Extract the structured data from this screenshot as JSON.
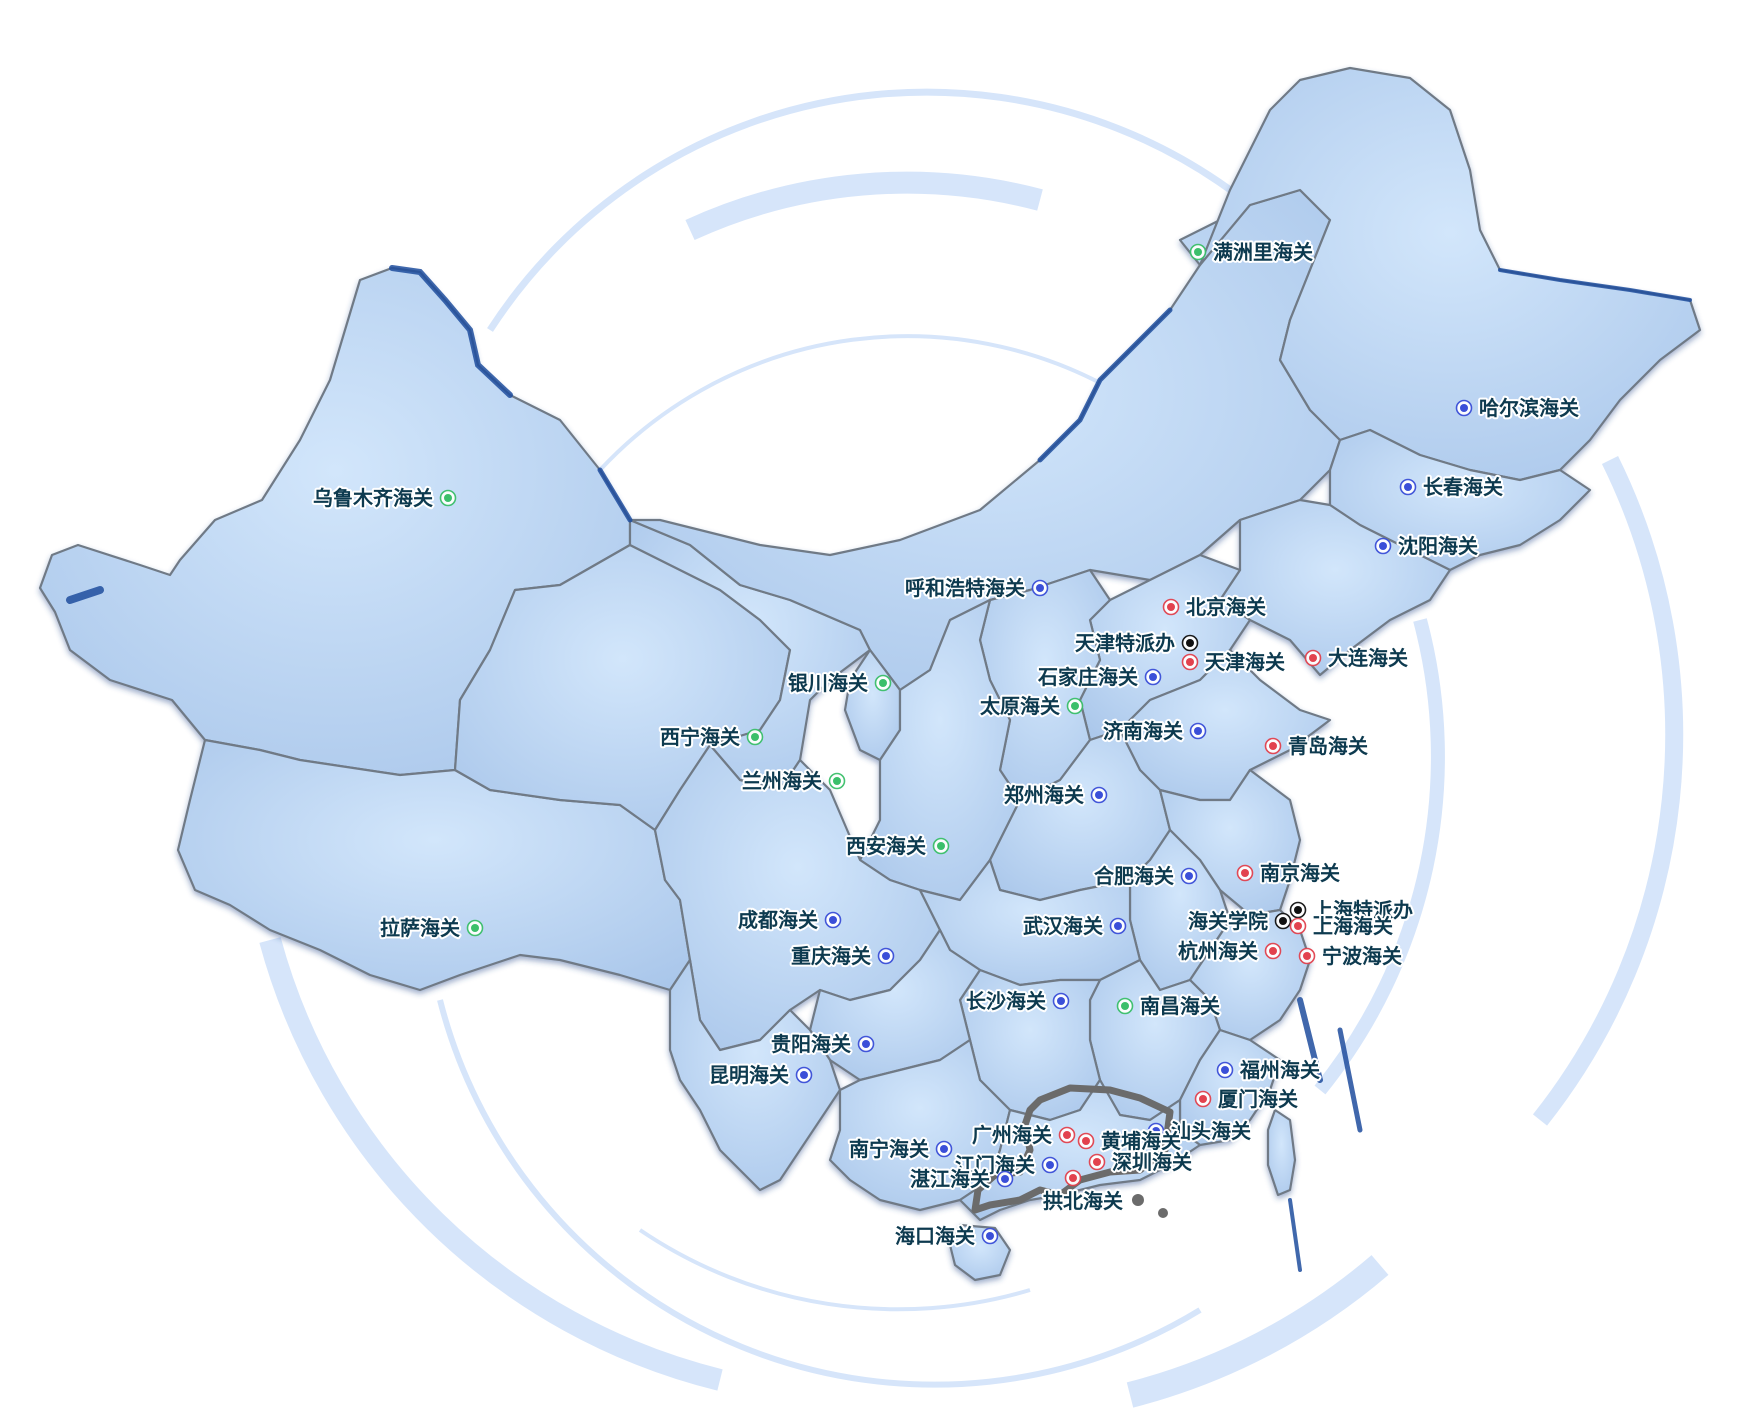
{
  "map": {
    "colors": {
      "red": "#e2424e",
      "blue": "#3b4fd8",
      "green": "#3bbf6a",
      "black": "#111111",
      "land": "#b9d3f0",
      "ring": "#d7e6fb",
      "label": "#0d3a4f"
    },
    "markers": [
      {
        "label": "满洲里海关",
        "color": "green",
        "side": "right"
      },
      {
        "label": "哈尔滨海关",
        "color": "blue",
        "side": "right"
      },
      {
        "label": "长春海关",
        "color": "blue",
        "side": "right"
      },
      {
        "label": "沈阳海关",
        "color": "blue",
        "side": "right"
      },
      {
        "label": "乌鲁木齐海关",
        "color": "green",
        "side": "left"
      },
      {
        "label": "呼和浩特海关",
        "color": "blue",
        "side": "left"
      },
      {
        "label": "北京海关",
        "color": "red",
        "side": "right"
      },
      {
        "label": "天津特派办",
        "color": "black",
        "side": "left"
      },
      {
        "label": "天津海关",
        "color": "red",
        "side": "right"
      },
      {
        "label": "大连海关",
        "color": "red",
        "side": "right"
      },
      {
        "label": "银川海关",
        "color": "green",
        "side": "left"
      },
      {
        "label": "石家庄海关",
        "color": "blue",
        "side": "left"
      },
      {
        "label": "太原海关",
        "color": "green",
        "side": "left"
      },
      {
        "label": "西宁海关",
        "color": "green",
        "side": "left"
      },
      {
        "label": "济南海关",
        "color": "blue",
        "side": "left"
      },
      {
        "label": "青岛海关",
        "color": "red",
        "side": "right"
      },
      {
        "label": "兰州海关",
        "color": "green",
        "side": "left"
      },
      {
        "label": "郑州海关",
        "color": "blue",
        "side": "left"
      },
      {
        "label": "西安海关",
        "color": "green",
        "side": "left"
      },
      {
        "label": "合肥海关",
        "color": "blue",
        "side": "left"
      },
      {
        "label": "南京海关",
        "color": "red",
        "side": "right"
      },
      {
        "label": "上海特派办",
        "color": "black",
        "side": "right"
      },
      {
        "label": "海关学院",
        "color": "black",
        "side": "left"
      },
      {
        "label": "上海海关",
        "color": "red",
        "side": "right"
      },
      {
        "label": "拉萨海关",
        "color": "green",
        "side": "left"
      },
      {
        "label": "成都海关",
        "color": "blue",
        "side": "left"
      },
      {
        "label": "武汉海关",
        "color": "blue",
        "side": "left"
      },
      {
        "label": "杭州海关",
        "color": "red",
        "side": "left"
      },
      {
        "label": "宁波海关",
        "color": "red",
        "side": "right"
      },
      {
        "label": "重庆海关",
        "color": "blue",
        "side": "left"
      },
      {
        "label": "长沙海关",
        "color": "blue",
        "side": "left"
      },
      {
        "label": "南昌海关",
        "color": "green",
        "side": "right"
      },
      {
        "label": "贵阳海关",
        "color": "blue",
        "side": "left"
      },
      {
        "label": "昆明海关",
        "color": "blue",
        "side": "left"
      },
      {
        "label": "福州海关",
        "color": "blue",
        "side": "right"
      },
      {
        "label": "厦门海关",
        "color": "red",
        "side": "right"
      },
      {
        "label": "广州海关",
        "color": "red",
        "side": "left"
      },
      {
        "label": "汕头海关",
        "color": "blue",
        "side": "right"
      },
      {
        "label": "黄埔海关",
        "color": "red",
        "side": "right"
      },
      {
        "label": "南宁海关",
        "color": "blue",
        "side": "left"
      },
      {
        "label": "江门海关",
        "color": "blue",
        "side": "left"
      },
      {
        "label": "深圳海关",
        "color": "red",
        "side": "right"
      },
      {
        "label": "湛江海关",
        "color": "blue",
        "side": "left"
      },
      {
        "label": "拱北海关",
        "color": "red",
        "side": "below"
      },
      {
        "label": "海口海关",
        "color": "blue",
        "side": "left"
      }
    ]
  }
}
